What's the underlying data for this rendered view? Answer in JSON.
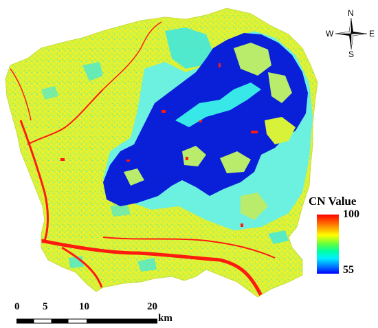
{
  "legend": {
    "title": "CN Value",
    "max_label": "100",
    "min_label": "55",
    "max_value": 100,
    "min_value": 55,
    "colors": [
      "#ff0000",
      "#ff8000",
      "#ffff00",
      "#80ff00",
      "#00ff80",
      "#00ffff",
      "#0080ff",
      "#0000ff"
    ]
  },
  "scale_bar": {
    "ticks": [
      "0",
      "5",
      "10",
      "20"
    ],
    "unit": "km"
  },
  "compass": {
    "north": "N",
    "south": "S",
    "east": "E",
    "west": "W"
  },
  "map_colors": {
    "yellow_green": "#d8f23a",
    "yellow": "#ffee22",
    "cyan": "#38e8e8",
    "light_cyan": "#6cf0e0",
    "blue": "#0a1fd8",
    "red": "#ff1a10",
    "green": "#7ae860"
  }
}
